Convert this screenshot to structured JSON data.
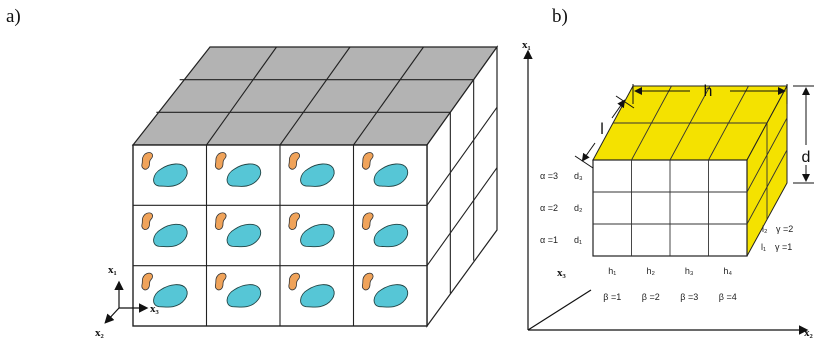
{
  "panels": {
    "a": {
      "label": "a)",
      "axes": {
        "x1": "x₁",
        "x2": "x₂",
        "x3": "x₃"
      },
      "grid": {
        "rows": 3,
        "cols": 4,
        "depth": 3
      }
    },
    "b": {
      "label": "b)",
      "axes": {
        "x1": "x₁",
        "x2": "x₂",
        "x3": "x₃"
      },
      "dims": {
        "h": "h",
        "l": "l",
        "d": "d"
      },
      "rows": [
        {
          "alpha": "α =3",
          "d": "d₃"
        },
        {
          "alpha": "α =2",
          "d": "d₂"
        },
        {
          "alpha": "α =1",
          "d": "d₁"
        }
      ],
      "cols": [
        {
          "h": "h₁",
          "beta": "β =1"
        },
        {
          "h": "h₂",
          "beta": "β =2"
        },
        {
          "h": "h₃",
          "beta": "β =3"
        },
        {
          "h": "h₄",
          "beta": "β =4"
        }
      ],
      "depth": [
        {
          "l": "l₂",
          "gamma": "γ =2"
        },
        {
          "l": "l₁",
          "gamma": "γ =1"
        }
      ]
    }
  },
  "colors": {
    "top_gray": "#b3b3b3",
    "cell_fill": "#ffffff",
    "cell_line": "#222222",
    "orange_blob": "#f0a35a",
    "cyan_blob": "#56c6d6",
    "yellow": "#f4e200"
  }
}
